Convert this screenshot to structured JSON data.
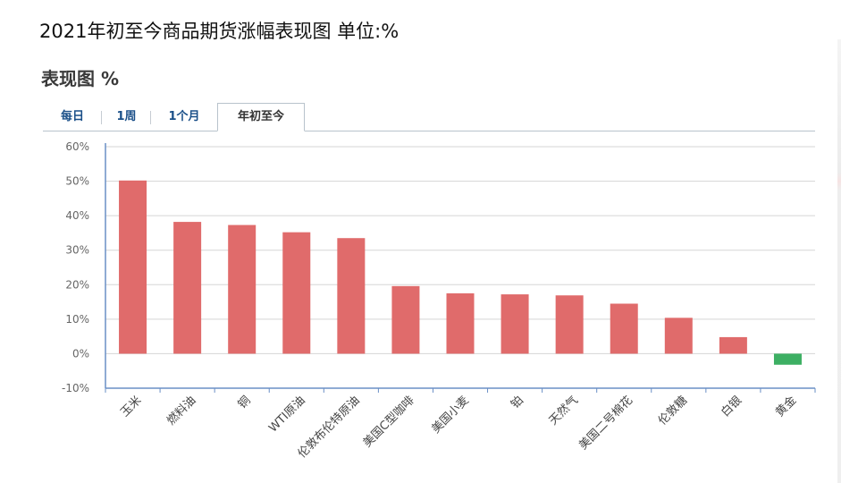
{
  "header": {
    "title": "2021年初至今商品期货涨幅表现图 单位:%"
  },
  "panel": {
    "title": "表现图 %"
  },
  "tabs": [
    {
      "label": "每日",
      "active": false
    },
    {
      "label": "1周",
      "active": false
    },
    {
      "label": "1个月",
      "active": false
    },
    {
      "label": "年初至今",
      "active": true
    }
  ],
  "colors": {
    "positive": "#e06b6b",
    "negative": "#3daf63",
    "grid": "#d5d5d5",
    "axis": "#6a8fc6",
    "tab_text": "#1a4f88"
  },
  "chart_data": {
    "type": "bar",
    "title": "",
    "xlabel": "",
    "ylabel": "",
    "ylim": [
      -10,
      60
    ],
    "yticks": [
      60,
      50,
      40,
      30,
      20,
      10,
      0,
      -10
    ],
    "ytick_labels": [
      "60%",
      "50%",
      "40%",
      "30%",
      "20%",
      "10%",
      "0%",
      "-10%"
    ],
    "grid": true,
    "categories": [
      "玉米",
      "燃料油",
      "铜",
      "WTI原油",
      "伦敦布伦特原油",
      "美国C型咖啡",
      "美国小麦",
      "铂",
      "天然气",
      "美国二号棉花",
      "伦敦糖",
      "白银",
      "黄金"
    ],
    "values": [
      50.2,
      38.2,
      37.3,
      35.2,
      33.5,
      19.6,
      17.5,
      17.2,
      16.9,
      14.5,
      10.4,
      4.8,
      -3.2
    ]
  }
}
